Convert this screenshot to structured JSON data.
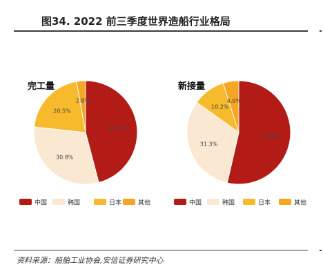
{
  "figure": {
    "title": "图34. 2022 前三季度世界造船行业格局",
    "source": "资料来源：船舶工业协会,安信证券研究中心"
  },
  "chart_data": [
    {
      "type": "pie",
      "title": "完工量",
      "categories": [
        "中国",
        "韩国",
        "日本",
        "其他"
      ],
      "values": [
        45.9,
        30.8,
        20.5,
        2.8
      ],
      "labels": [
        "45.9%",
        "30.8%",
        "20.5%",
        "2.8%"
      ],
      "colors": [
        "#b31b17",
        "#fbe8d3",
        "#f6ba2c",
        "#f5a623"
      ],
      "legend": "bottom"
    },
    {
      "type": "pie",
      "title": "新接量",
      "categories": [
        "中国",
        "韩国",
        "日本",
        "其他"
      ],
      "values": [
        53.6,
        31.3,
        10.2,
        4.9
      ],
      "labels": [
        "53.6%",
        "31.3%",
        "10.2%",
        "4.9%"
      ],
      "colors": [
        "#b31b17",
        "#fbe8d3",
        "#f6ba2c",
        "#f5a623"
      ],
      "legend": "bottom"
    }
  ]
}
